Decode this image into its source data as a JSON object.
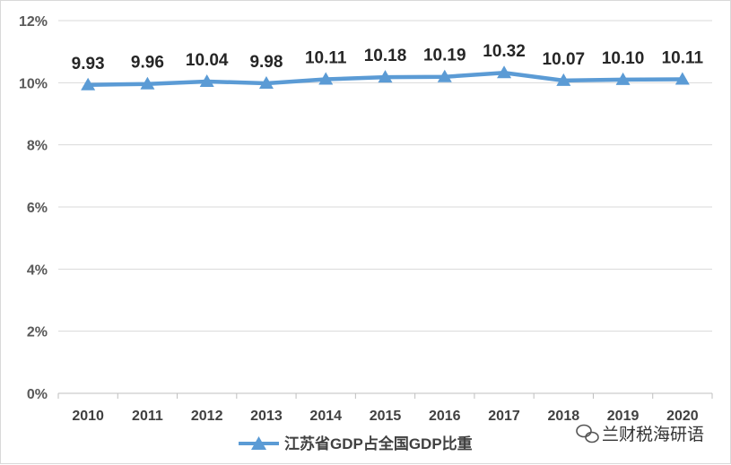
{
  "chart_data": {
    "type": "line",
    "categories": [
      "2010",
      "2011",
      "2012",
      "2013",
      "2014",
      "2015",
      "2016",
      "2017",
      "2018",
      "2019",
      "2020"
    ],
    "series": [
      {
        "name": "江苏省GDP占全国GDP比重",
        "values": [
          9.93,
          9.96,
          10.04,
          9.98,
          10.11,
          10.18,
          10.19,
          10.32,
          10.07,
          10.1,
          10.11
        ],
        "labels": [
          "9.93",
          "9.96",
          "10.04",
          "9.98",
          "10.11",
          "10.18",
          "10.19",
          "10.32",
          "10.07",
          "10.10",
          "10.11"
        ],
        "color": "#5b9bd5",
        "marker": "triangle"
      }
    ],
    "y_ticks": [
      "0%",
      "2%",
      "4%",
      "6%",
      "8%",
      "10%",
      "12%"
    ],
    "ylim": [
      0,
      12
    ],
    "grid": true,
    "legend_position": "bottom"
  },
  "watermark": {
    "text": "兰财税海研语",
    "icon": "wechat-icon"
  }
}
